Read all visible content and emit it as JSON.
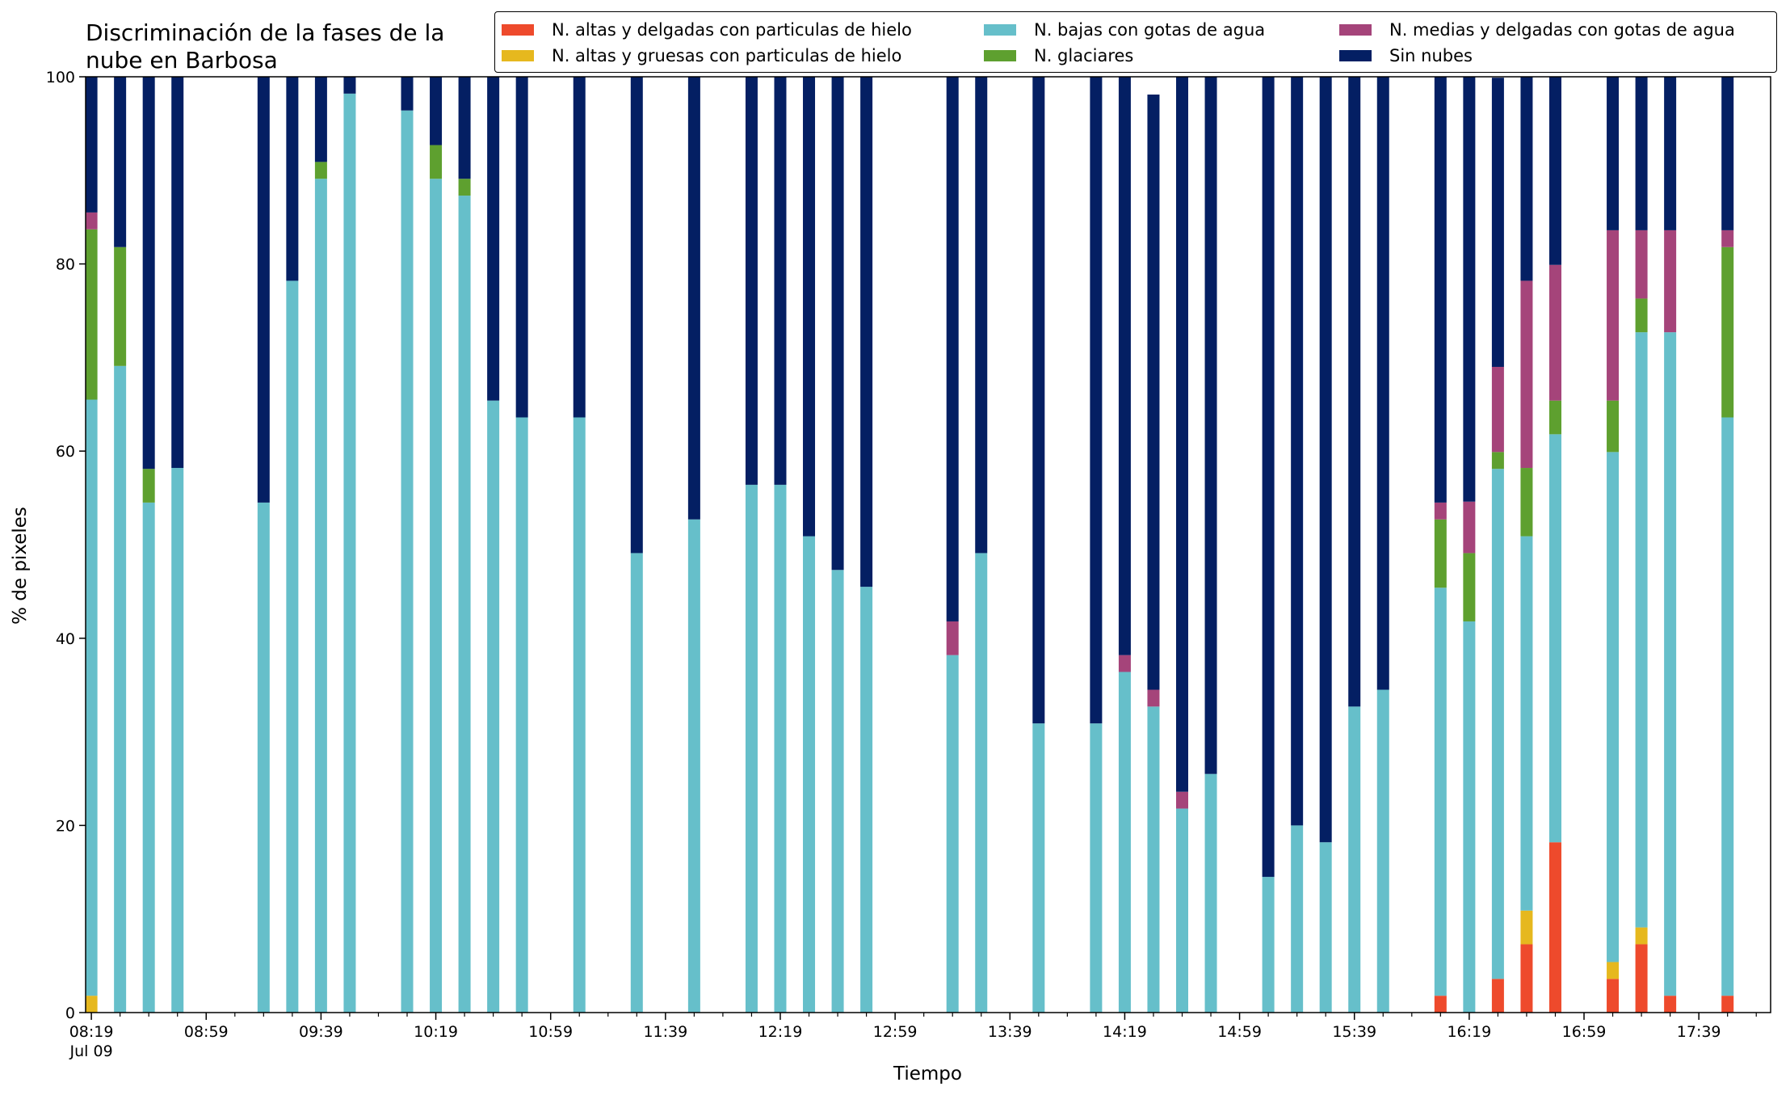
{
  "chart_data": {
    "type": "bar",
    "stacked": true,
    "title": "Discriminación de la fases de la nube en Barbosa",
    "title_lines": [
      "Discriminación de la fases de la",
      "nube en Barbosa"
    ],
    "xlabel": "Tiempo",
    "ylabel": "% de pixeles",
    "ylim": [
      0,
      100
    ],
    "yticks": [
      0,
      20,
      40,
      60,
      80,
      100
    ],
    "xtick_labels": [
      {
        "label": "08:19",
        "sublabel": "Jul 09",
        "minutes": 499
      },
      {
        "label": "08:59",
        "minutes": 539
      },
      {
        "label": "09:39",
        "minutes": 579
      },
      {
        "label": "10:19",
        "minutes": 619
      },
      {
        "label": "10:59",
        "minutes": 659
      },
      {
        "label": "11:39",
        "minutes": 699
      },
      {
        "label": "12:19",
        "minutes": 739
      },
      {
        "label": "12:59",
        "minutes": 779
      },
      {
        "label": "13:39",
        "minutes": 819
      },
      {
        "label": "14:19",
        "minutes": 859
      },
      {
        "label": "14:59",
        "minutes": 899
      },
      {
        "label": "15:39",
        "minutes": 939
      },
      {
        "label": "16:19",
        "minutes": 979
      },
      {
        "label": "16:59",
        "minutes": 1019
      },
      {
        "label": "17:39",
        "minutes": 1059
      }
    ],
    "minor_tick_step_minutes": 10,
    "x_range_minutes": [
      497,
      1084
    ],
    "legend_position": "top-right",
    "series": [
      {
        "key": "altas_delgadas",
        "name": "N. altas y delgadas con particulas de hielo",
        "color": "#ee4a2c"
      },
      {
        "key": "altas_gruesas",
        "name": "N. altas y gruesas con particulas de hielo",
        "color": "#e6b81e"
      },
      {
        "key": "bajas",
        "name": "N. bajas con gotas de agua",
        "color": "#66bfca"
      },
      {
        "key": "glaciares",
        "name": "N. glaciares",
        "color": "#5ea02f"
      },
      {
        "key": "medias",
        "name": "N. medias y delgadas con gotas de agua",
        "color": "#a5447a"
      },
      {
        "key": "sin_nubes",
        "name": "Sin nubes",
        "color": "#041f63"
      }
    ],
    "legend_order": [
      "altas_delgadas",
      "bajas",
      "medias",
      "altas_gruesas",
      "glaciares",
      "sin_nubes"
    ],
    "times": [
      "08:19",
      "08:29",
      "08:39",
      "08:49",
      "09:19",
      "09:29",
      "09:39",
      "09:49",
      "10:09",
      "10:19",
      "10:29",
      "10:39",
      "10:49",
      "11:09",
      "11:29",
      "11:49",
      "12:09",
      "12:19",
      "12:29",
      "12:39",
      "12:49",
      "13:19",
      "13:29",
      "13:49",
      "14:09",
      "14:19",
      "14:29",
      "14:39",
      "14:49",
      "15:09",
      "15:19",
      "15:29",
      "15:39",
      "15:49",
      "16:09",
      "16:19",
      "16:29",
      "16:39",
      "16:49",
      "17:09",
      "17:19",
      "17:29",
      "17:49"
    ],
    "values": {
      "altas_delgadas": [
        0,
        0,
        0,
        0,
        0,
        0,
        0,
        0,
        0,
        0,
        0,
        0,
        0,
        0,
        0,
        0,
        0,
        0,
        0,
        0,
        0,
        0,
        0,
        0,
        0,
        0,
        0,
        0,
        0,
        0,
        0,
        0,
        0,
        0,
        1.8,
        0,
        3.6,
        7.3,
        18.2,
        3.6,
        7.3,
        1.8,
        1.8
      ],
      "altas_gruesas": [
        1.8,
        0,
        0,
        0,
        0,
        0,
        0,
        0,
        0,
        0,
        0,
        0,
        0,
        0,
        0,
        0,
        0,
        0,
        0,
        0,
        0,
        0,
        0,
        0,
        0,
        0,
        0,
        0,
        0,
        0,
        0,
        0,
        0,
        0,
        0,
        0,
        0,
        3.6,
        0,
        1.8,
        1.8,
        0,
        0
      ],
      "bajas": [
        63.7,
        69.1,
        54.5,
        58.2,
        54.5,
        78.2,
        89.1,
        98.2,
        96.4,
        89.1,
        87.3,
        65.4,
        63.6,
        63.6,
        49.1,
        52.7,
        56.4,
        56.4,
        50.9,
        47.3,
        45.5,
        38.2,
        49.1,
        30.9,
        30.9,
        36.4,
        32.7,
        21.8,
        25.5,
        14.5,
        20.0,
        18.2,
        32.7,
        34.5,
        43.6,
        41.8,
        54.5,
        40.0,
        43.6,
        54.5,
        63.6,
        70.9,
        61.8
      ],
      "glaciares": [
        18.2,
        12.7,
        3.6,
        0,
        0,
        0,
        1.8,
        0,
        0,
        3.6,
        1.8,
        0,
        0,
        0,
        0,
        0,
        0,
        0,
        0,
        0,
        0,
        0,
        0,
        0,
        0,
        0,
        0,
        0,
        0,
        0,
        0,
        0,
        0,
        0,
        7.3,
        7.3,
        1.8,
        7.3,
        3.6,
        5.5,
        3.6,
        0,
        18.2
      ],
      "medias": [
        1.8,
        0,
        0,
        0,
        0,
        0,
        0,
        0,
        0,
        0,
        0,
        0,
        0,
        0,
        0,
        0,
        0,
        0,
        0,
        0,
        0,
        3.6,
        0,
        0,
        0,
        1.8,
        1.8,
        1.8,
        0,
        0,
        0,
        0,
        0,
        0,
        1.8,
        5.5,
        9.1,
        20.0,
        14.5,
        18.2,
        7.3,
        10.9,
        1.8
      ],
      "sin_nubes": [
        14.5,
        18.2,
        41.9,
        41.8,
        45.5,
        21.8,
        9.1,
        1.8,
        3.6,
        7.3,
        10.9,
        34.6,
        36.4,
        36.4,
        50.9,
        47.3,
        43.6,
        43.6,
        49.1,
        52.7,
        54.5,
        58.2,
        50.9,
        69.1,
        69.1,
        61.8,
        63.6,
        76.4,
        74.5,
        85.5,
        80.0,
        81.8,
        67.3,
        65.5,
        45.5,
        45.4,
        30.9,
        21.8,
        20.1,
        16.4,
        16.4,
        16.4,
        16.4
      ]
    }
  }
}
